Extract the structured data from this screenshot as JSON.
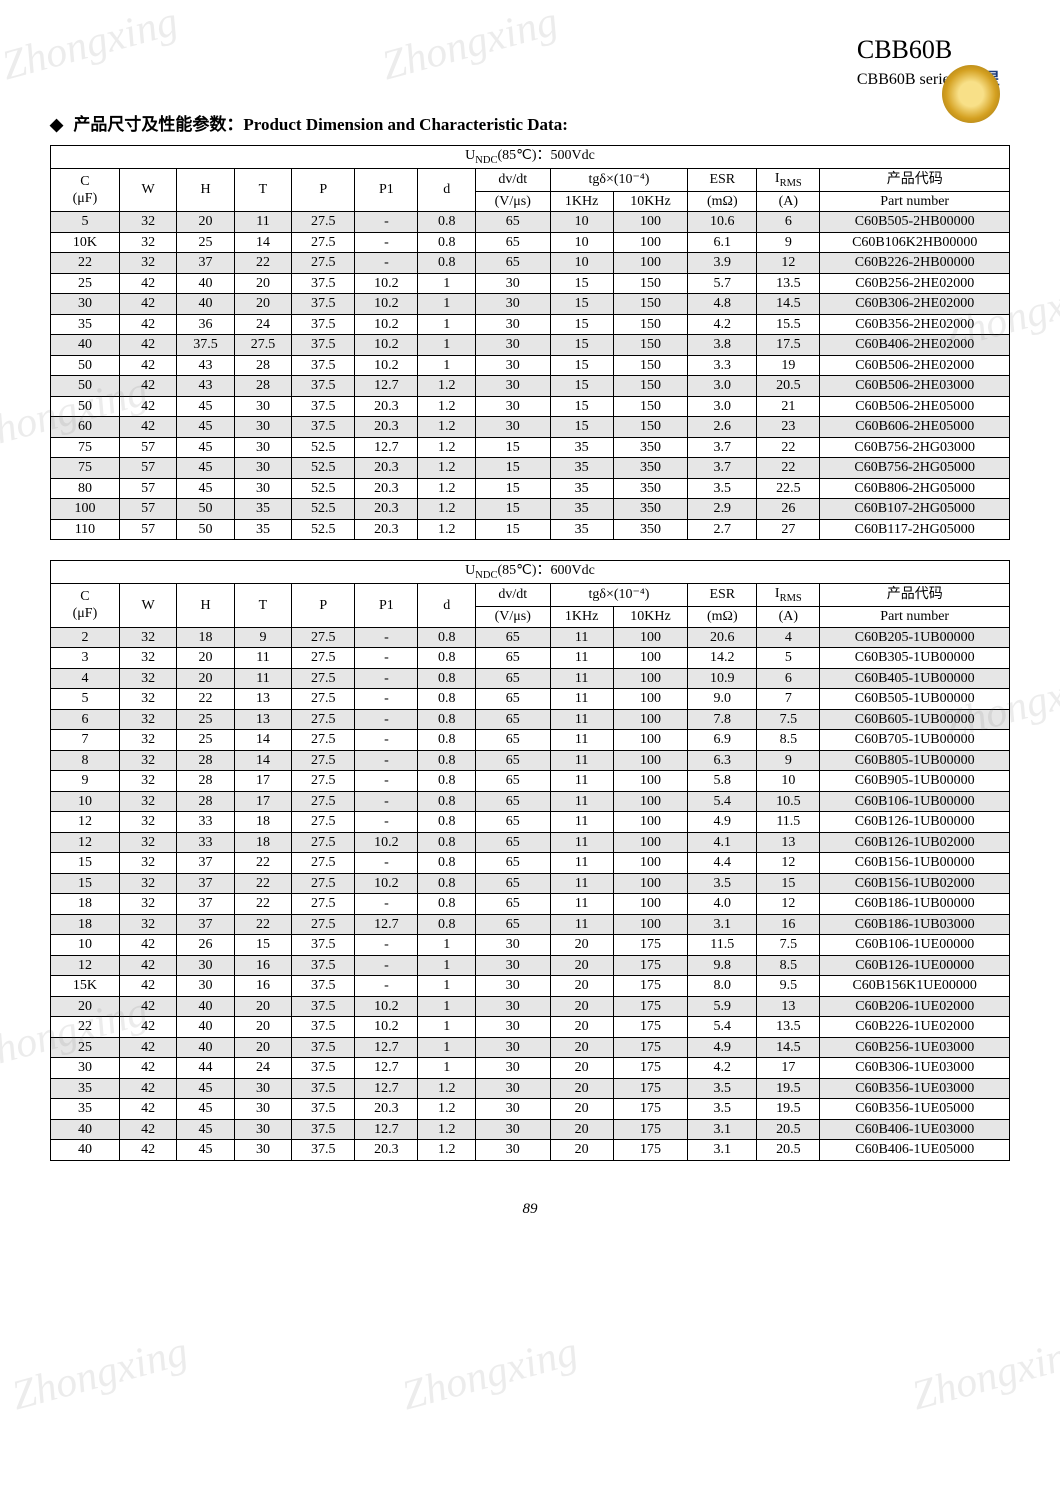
{
  "header": {
    "title": "CBB60B",
    "subtitle": "CBB60B series",
    "brand": "中 星"
  },
  "sectionTitle": "产品尺寸及性能参数：Product Dimension and Characteristic Data:",
  "pageNumber": "89",
  "watermarkText": "Zhongxing",
  "tables": [
    {
      "voltageHeader": "UNDC(85℃)：500Vdc",
      "columns": {
        "c": "C",
        "c_unit": "(μF)",
        "w": "W",
        "h": "H",
        "t": "T",
        "p": "P",
        "p1": "P1",
        "d": "d",
        "dvdt": "dv/dt",
        "dvdt_unit": "(V/μs)",
        "tg": "tgδ×(10⁻⁴)",
        "tg1": "1KHz",
        "tg2": "10KHz",
        "esr": "ESR",
        "esr_unit": "(mΩ)",
        "irms": "IRMS",
        "irms_unit": "(A)",
        "part": "产品代码",
        "part_unit": "Part number"
      },
      "rows": [
        {
          "shaded": true,
          "c": "5",
          "w": "32",
          "h": "20",
          "t": "11",
          "p": "27.5",
          "p1": "-",
          "d": "0.8",
          "dvdt": "65",
          "tg1": "10",
          "tg2": "100",
          "esr": "10.6",
          "irms": "6",
          "part": "C60B505-2HB00000"
        },
        {
          "shaded": false,
          "c": "10K",
          "w": "32",
          "h": "25",
          "t": "14",
          "p": "27.5",
          "p1": "-",
          "d": "0.8",
          "dvdt": "65",
          "tg1": "10",
          "tg2": "100",
          "esr": "6.1",
          "irms": "9",
          "part": "C60B106K2HB00000"
        },
        {
          "shaded": true,
          "c": "22",
          "w": "32",
          "h": "37",
          "t": "22",
          "p": "27.5",
          "p1": "-",
          "d": "0.8",
          "dvdt": "65",
          "tg1": "10",
          "tg2": "100",
          "esr": "3.9",
          "irms": "12",
          "part": "C60B226-2HB00000"
        },
        {
          "shaded": false,
          "c": "25",
          "w": "42",
          "h": "40",
          "t": "20",
          "p": "37.5",
          "p1": "10.2",
          "d": "1",
          "dvdt": "30",
          "tg1": "15",
          "tg2": "150",
          "esr": "5.7",
          "irms": "13.5",
          "part": "C60B256-2HE02000"
        },
        {
          "shaded": true,
          "c": "30",
          "w": "42",
          "h": "40",
          "t": "20",
          "p": "37.5",
          "p1": "10.2",
          "d": "1",
          "dvdt": "30",
          "tg1": "15",
          "tg2": "150",
          "esr": "4.8",
          "irms": "14.5",
          "part": "C60B306-2HE02000"
        },
        {
          "shaded": false,
          "c": "35",
          "w": "42",
          "h": "36",
          "t": "24",
          "p": "37.5",
          "p1": "10.2",
          "d": "1",
          "dvdt": "30",
          "tg1": "15",
          "tg2": "150",
          "esr": "4.2",
          "irms": "15.5",
          "part": "C60B356-2HE02000"
        },
        {
          "shaded": true,
          "c": "40",
          "w": "42",
          "h": "37.5",
          "t": "27.5",
          "p": "37.5",
          "p1": "10.2",
          "d": "1",
          "dvdt": "30",
          "tg1": "15",
          "tg2": "150",
          "esr": "3.8",
          "irms": "17.5",
          "part": "C60B406-2HE02000"
        },
        {
          "shaded": false,
          "c": "50",
          "w": "42",
          "h": "43",
          "t": "28",
          "p": "37.5",
          "p1": "10.2",
          "d": "1",
          "dvdt": "30",
          "tg1": "15",
          "tg2": "150",
          "esr": "3.3",
          "irms": "19",
          "part": "C60B506-2HE02000"
        },
        {
          "shaded": true,
          "c": "50",
          "w": "42",
          "h": "43",
          "t": "28",
          "p": "37.5",
          "p1": "12.7",
          "d": "1.2",
          "dvdt": "30",
          "tg1": "15",
          "tg2": "150",
          "esr": "3.0",
          "irms": "20.5",
          "part": "C60B506-2HE03000"
        },
        {
          "shaded": false,
          "c": "50",
          "w": "42",
          "h": "45",
          "t": "30",
          "p": "37.5",
          "p1": "20.3",
          "d": "1.2",
          "dvdt": "30",
          "tg1": "15",
          "tg2": "150",
          "esr": "3.0",
          "irms": "21",
          "part": "C60B506-2HE05000"
        },
        {
          "shaded": true,
          "c": "60",
          "w": "42",
          "h": "45",
          "t": "30",
          "p": "37.5",
          "p1": "20.3",
          "d": "1.2",
          "dvdt": "30",
          "tg1": "15",
          "tg2": "150",
          "esr": "2.6",
          "irms": "23",
          "part": "C60B606-2HE05000"
        },
        {
          "shaded": false,
          "c": "75",
          "w": "57",
          "h": "45",
          "t": "30",
          "p": "52.5",
          "p1": "12.7",
          "d": "1.2",
          "dvdt": "15",
          "tg1": "35",
          "tg2": "350",
          "esr": "3.7",
          "irms": "22",
          "part": "C60B756-2HG03000"
        },
        {
          "shaded": true,
          "c": "75",
          "w": "57",
          "h": "45",
          "t": "30",
          "p": "52.5",
          "p1": "20.3",
          "d": "1.2",
          "dvdt": "15",
          "tg1": "35",
          "tg2": "350",
          "esr": "3.7",
          "irms": "22",
          "part": "C60B756-2HG05000"
        },
        {
          "shaded": false,
          "c": "80",
          "w": "57",
          "h": "45",
          "t": "30",
          "p": "52.5",
          "p1": "20.3",
          "d": "1.2",
          "dvdt": "15",
          "tg1": "35",
          "tg2": "350",
          "esr": "3.5",
          "irms": "22.5",
          "part": "C60B806-2HG05000"
        },
        {
          "shaded": true,
          "c": "100",
          "w": "57",
          "h": "50",
          "t": "35",
          "p": "52.5",
          "p1": "20.3",
          "d": "1.2",
          "dvdt": "15",
          "tg1": "35",
          "tg2": "350",
          "esr": "2.9",
          "irms": "26",
          "part": "C60B107-2HG05000"
        },
        {
          "shaded": false,
          "c": "110",
          "w": "57",
          "h": "50",
          "t": "35",
          "p": "52.5",
          "p1": "20.3",
          "d": "1.2",
          "dvdt": "15",
          "tg1": "35",
          "tg2": "350",
          "esr": "2.7",
          "irms": "27",
          "part": "C60B117-2HG05000"
        }
      ]
    },
    {
      "voltageHeader": "UNDC(85℃)：600Vdc",
      "columns": {
        "c": "C",
        "c_unit": "(μF)",
        "w": "W",
        "h": "H",
        "t": "T",
        "p": "P",
        "p1": "P1",
        "d": "d",
        "dvdt": "dv/dt",
        "dvdt_unit": "(V/μs)",
        "tg": "tgδ×(10⁻⁴)",
        "tg1": "1KHz",
        "tg2": "10KHz",
        "esr": "ESR",
        "esr_unit": "(mΩ)",
        "irms": "IRMS",
        "irms_unit": "(A)",
        "part": "产品代码",
        "part_unit": "Part number"
      },
      "rows": [
        {
          "shaded": true,
          "c": "2",
          "w": "32",
          "h": "18",
          "t": "9",
          "p": "27.5",
          "p1": "-",
          "d": "0.8",
          "dvdt": "65",
          "tg1": "11",
          "tg2": "100",
          "esr": "20.6",
          "irms": "4",
          "part": "C60B205-1UB00000"
        },
        {
          "shaded": false,
          "c": "3",
          "w": "32",
          "h": "20",
          "t": "11",
          "p": "27.5",
          "p1": "-",
          "d": "0.8",
          "dvdt": "65",
          "tg1": "11",
          "tg2": "100",
          "esr": "14.2",
          "irms": "5",
          "part": "C60B305-1UB00000"
        },
        {
          "shaded": true,
          "c": "4",
          "w": "32",
          "h": "20",
          "t": "11",
          "p": "27.5",
          "p1": "-",
          "d": "0.8",
          "dvdt": "65",
          "tg1": "11",
          "tg2": "100",
          "esr": "10.9",
          "irms": "6",
          "part": "C60B405-1UB00000"
        },
        {
          "shaded": false,
          "c": "5",
          "w": "32",
          "h": "22",
          "t": "13",
          "p": "27.5",
          "p1": "-",
          "d": "0.8",
          "dvdt": "65",
          "tg1": "11",
          "tg2": "100",
          "esr": "9.0",
          "irms": "7",
          "part": "C60B505-1UB00000"
        },
        {
          "shaded": true,
          "c": "6",
          "w": "32",
          "h": "25",
          "t": "13",
          "p": "27.5",
          "p1": "-",
          "d": "0.8",
          "dvdt": "65",
          "tg1": "11",
          "tg2": "100",
          "esr": "7.8",
          "irms": "7.5",
          "part": "C60B605-1UB00000"
        },
        {
          "shaded": false,
          "c": "7",
          "w": "32",
          "h": "25",
          "t": "14",
          "p": "27.5",
          "p1": "-",
          "d": "0.8",
          "dvdt": "65",
          "tg1": "11",
          "tg2": "100",
          "esr": "6.9",
          "irms": "8.5",
          "part": "C60B705-1UB00000"
        },
        {
          "shaded": true,
          "c": "8",
          "w": "32",
          "h": "28",
          "t": "14",
          "p": "27.5",
          "p1": "-",
          "d": "0.8",
          "dvdt": "65",
          "tg1": "11",
          "tg2": "100",
          "esr": "6.3",
          "irms": "9",
          "part": "C60B805-1UB00000"
        },
        {
          "shaded": false,
          "c": "9",
          "w": "32",
          "h": "28",
          "t": "17",
          "p": "27.5",
          "p1": "-",
          "d": "0.8",
          "dvdt": "65",
          "tg1": "11",
          "tg2": "100",
          "esr": "5.8",
          "irms": "10",
          "part": "C60B905-1UB00000"
        },
        {
          "shaded": true,
          "c": "10",
          "w": "32",
          "h": "28",
          "t": "17",
          "p": "27.5",
          "p1": "-",
          "d": "0.8",
          "dvdt": "65",
          "tg1": "11",
          "tg2": "100",
          "esr": "5.4",
          "irms": "10.5",
          "part": "C60B106-1UB00000"
        },
        {
          "shaded": false,
          "c": "12",
          "w": "32",
          "h": "33",
          "t": "18",
          "p": "27.5",
          "p1": "-",
          "d": "0.8",
          "dvdt": "65",
          "tg1": "11",
          "tg2": "100",
          "esr": "4.9",
          "irms": "11.5",
          "part": "C60B126-1UB00000"
        },
        {
          "shaded": true,
          "c": "12",
          "w": "32",
          "h": "33",
          "t": "18",
          "p": "27.5",
          "p1": "10.2",
          "d": "0.8",
          "dvdt": "65",
          "tg1": "11",
          "tg2": "100",
          "esr": "4.1",
          "irms": "13",
          "part": "C60B126-1UB02000"
        },
        {
          "shaded": false,
          "c": "15",
          "w": "32",
          "h": "37",
          "t": "22",
          "p": "27.5",
          "p1": "-",
          "d": "0.8",
          "dvdt": "65",
          "tg1": "11",
          "tg2": "100",
          "esr": "4.4",
          "irms": "12",
          "part": "C60B156-1UB00000"
        },
        {
          "shaded": true,
          "c": "15",
          "w": "32",
          "h": "37",
          "t": "22",
          "p": "27.5",
          "p1": "10.2",
          "d": "0.8",
          "dvdt": "65",
          "tg1": "11",
          "tg2": "100",
          "esr": "3.5",
          "irms": "15",
          "part": "C60B156-1UB02000"
        },
        {
          "shaded": false,
          "c": "18",
          "w": "32",
          "h": "37",
          "t": "22",
          "p": "27.5",
          "p1": "-",
          "d": "0.8",
          "dvdt": "65",
          "tg1": "11",
          "tg2": "100",
          "esr": "4.0",
          "irms": "12",
          "part": "C60B186-1UB00000"
        },
        {
          "shaded": true,
          "c": "18",
          "w": "32",
          "h": "37",
          "t": "22",
          "p": "27.5",
          "p1": "12.7",
          "d": "0.8",
          "dvdt": "65",
          "tg1": "11",
          "tg2": "100",
          "esr": "3.1",
          "irms": "16",
          "part": "C60B186-1UB03000"
        },
        {
          "shaded": false,
          "c": "10",
          "w": "42",
          "h": "26",
          "t": "15",
          "p": "37.5",
          "p1": "-",
          "d": "1",
          "dvdt": "30",
          "tg1": "20",
          "tg2": "175",
          "esr": "11.5",
          "irms": "7.5",
          "part": "C60B106-1UE00000"
        },
        {
          "shaded": true,
          "c": "12",
          "w": "42",
          "h": "30",
          "t": "16",
          "p": "37.5",
          "p1": "-",
          "d": "1",
          "dvdt": "30",
          "tg1": "20",
          "tg2": "175",
          "esr": "9.8",
          "irms": "8.5",
          "part": "C60B126-1UE00000"
        },
        {
          "shaded": false,
          "c": "15K",
          "w": "42",
          "h": "30",
          "t": "16",
          "p": "37.5",
          "p1": "-",
          "d": "1",
          "dvdt": "30",
          "tg1": "20",
          "tg2": "175",
          "esr": "8.0",
          "irms": "9.5",
          "part": "C60B156K1UE00000"
        },
        {
          "shaded": true,
          "c": "20",
          "w": "42",
          "h": "40",
          "t": "20",
          "p": "37.5",
          "p1": "10.2",
          "d": "1",
          "dvdt": "30",
          "tg1": "20",
          "tg2": "175",
          "esr": "5.9",
          "irms": "13",
          "part": "C60B206-1UE02000"
        },
        {
          "shaded": false,
          "c": "22",
          "w": "42",
          "h": "40",
          "t": "20",
          "p": "37.5",
          "p1": "10.2",
          "d": "1",
          "dvdt": "30",
          "tg1": "20",
          "tg2": "175",
          "esr": "5.4",
          "irms": "13.5",
          "part": "C60B226-1UE02000"
        },
        {
          "shaded": true,
          "c": "25",
          "w": "42",
          "h": "40",
          "t": "20",
          "p": "37.5",
          "p1": "12.7",
          "d": "1",
          "dvdt": "30",
          "tg1": "20",
          "tg2": "175",
          "esr": "4.9",
          "irms": "14.5",
          "part": "C60B256-1UE03000"
        },
        {
          "shaded": false,
          "c": "30",
          "w": "42",
          "h": "44",
          "t": "24",
          "p": "37.5",
          "p1": "12.7",
          "d": "1",
          "dvdt": "30",
          "tg1": "20",
          "tg2": "175",
          "esr": "4.2",
          "irms": "17",
          "part": "C60B306-1UE03000"
        },
        {
          "shaded": true,
          "c": "35",
          "w": "42",
          "h": "45",
          "t": "30",
          "p": "37.5",
          "p1": "12.7",
          "d": "1.2",
          "dvdt": "30",
          "tg1": "20",
          "tg2": "175",
          "esr": "3.5",
          "irms": "19.5",
          "part": "C60B356-1UE03000"
        },
        {
          "shaded": false,
          "c": "35",
          "w": "42",
          "h": "45",
          "t": "30",
          "p": "37.5",
          "p1": "20.3",
          "d": "1.2",
          "dvdt": "30",
          "tg1": "20",
          "tg2": "175",
          "esr": "3.5",
          "irms": "19.5",
          "part": "C60B356-1UE05000"
        },
        {
          "shaded": true,
          "c": "40",
          "w": "42",
          "h": "45",
          "t": "30",
          "p": "37.5",
          "p1": "12.7",
          "d": "1.2",
          "dvdt": "30",
          "tg1": "20",
          "tg2": "175",
          "esr": "3.1",
          "irms": "20.5",
          "part": "C60B406-1UE03000"
        },
        {
          "shaded": false,
          "c": "40",
          "w": "42",
          "h": "45",
          "t": "30",
          "p": "37.5",
          "p1": "20.3",
          "d": "1.2",
          "dvdt": "30",
          "tg1": "20",
          "tg2": "175",
          "esr": "3.1",
          "irms": "20.5",
          "part": "C60B406-1UE05000"
        }
      ]
    }
  ]
}
